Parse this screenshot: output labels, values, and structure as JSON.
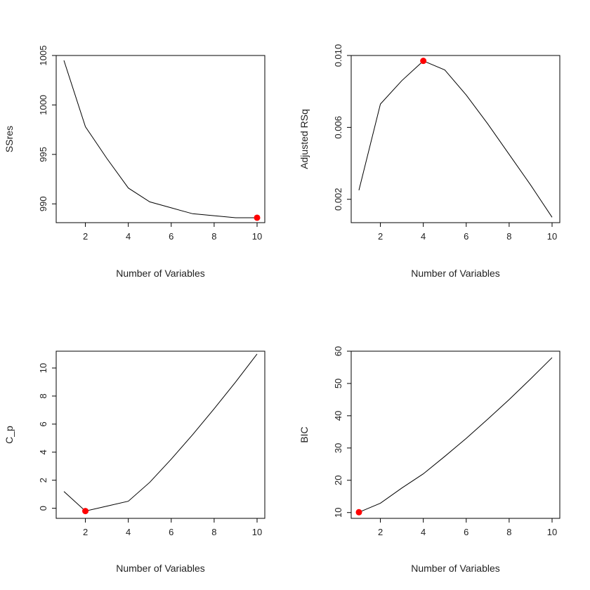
{
  "chart_data": [
    {
      "type": "line",
      "xlabel": "Number of Variables",
      "ylabel": "SSres",
      "x": [
        1,
        2,
        3,
        4,
        5,
        6,
        7,
        8,
        9,
        10
      ],
      "values": [
        1004.5,
        997.8,
        994.6,
        991.6,
        990.2,
        989.6,
        989.0,
        988.8,
        988.6,
        988.6
      ],
      "xlim": [
        0.64,
        10.36
      ],
      "ylim": [
        988.1,
        1005.0
      ],
      "xticks": [
        2,
        4,
        6,
        8,
        10
      ],
      "yticks": [
        990,
        995,
        1000,
        1005
      ],
      "highlight": {
        "x": 10,
        "y": 988.6
      },
      "grid": false
    },
    {
      "type": "line",
      "xlabel": "Number of Variables",
      "ylabel": "Adjusted RSq",
      "x": [
        1,
        2,
        3,
        4,
        5,
        6,
        7,
        8,
        9,
        10
      ],
      "values": [
        0.0025,
        0.0073,
        0.0086,
        0.0097,
        0.0092,
        0.0078,
        0.0062,
        0.0045,
        0.0028,
        0.001
      ],
      "xlim": [
        0.64,
        10.36
      ],
      "ylim": [
        0.0007,
        0.01
      ],
      "xticks": [
        2,
        4,
        6,
        8,
        10
      ],
      "yticks": [
        0.002,
        0.006,
        0.01
      ],
      "ytick_labels": [
        "0.002",
        "0.006",
        "0.010"
      ],
      "highlight": {
        "x": 4,
        "y": 0.0097
      },
      "grid": false
    },
    {
      "type": "line",
      "xlabel": "Number of Variables",
      "ylabel": "C_p",
      "x": [
        1,
        2,
        3,
        4,
        5,
        6,
        7,
        8,
        9,
        10
      ],
      "values": [
        1.2,
        -0.2,
        0.15,
        0.5,
        1.85,
        3.5,
        5.25,
        7.1,
        9.0,
        11.0
      ],
      "xlim": [
        0.64,
        10.36
      ],
      "ylim": [
        -0.72,
        11.2
      ],
      "xticks": [
        2,
        4,
        6,
        8,
        10
      ],
      "yticks": [
        0,
        2,
        4,
        6,
        8,
        10
      ],
      "highlight": {
        "x": 2,
        "y": -0.2
      },
      "grid": false
    },
    {
      "type": "line",
      "xlabel": "Number of Variables",
      "ylabel": "BIC",
      "x": [
        1,
        2,
        3,
        4,
        5,
        6,
        7,
        8,
        9,
        10
      ],
      "values": [
        10.1,
        12.9,
        17.6,
        22.0,
        27.4,
        33.0,
        38.9,
        45.0,
        51.4,
        58.0
      ],
      "xlim": [
        0.64,
        10.36
      ],
      "ylim": [
        8.2,
        60.0
      ],
      "xticks": [
        2,
        4,
        6,
        8,
        10
      ],
      "yticks": [
        10,
        20,
        30,
        40,
        50,
        60
      ],
      "highlight": {
        "x": 1,
        "y": 10.1
      },
      "grid": false
    }
  ],
  "colors": {
    "line": "#000000",
    "highlight": "#ff0000",
    "frame": "#000000"
  }
}
